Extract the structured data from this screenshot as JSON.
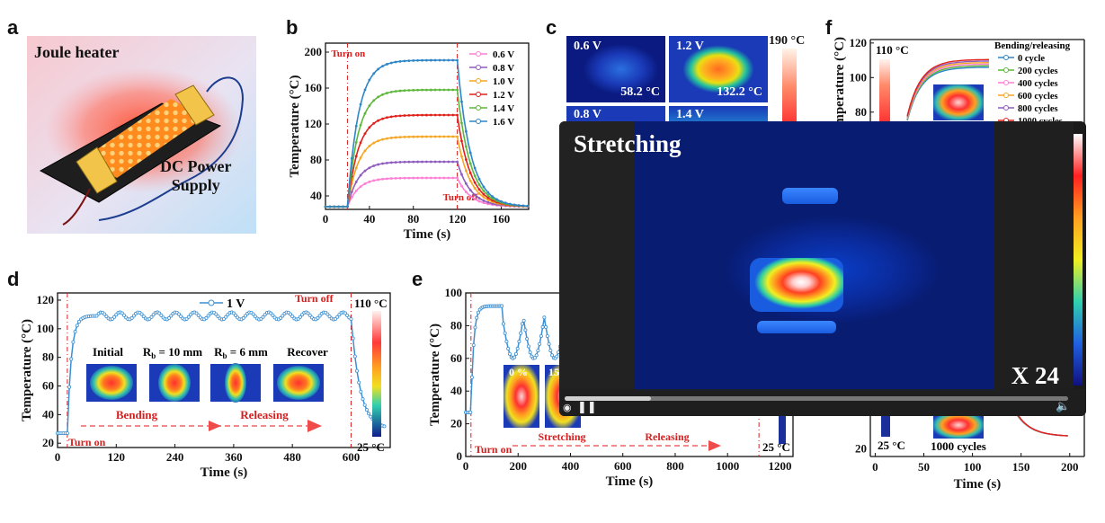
{
  "panels": {
    "a": {
      "letter": "a",
      "title": "Joule heater",
      "label": "DC Power\nSupply",
      "label_line1": "DC Power",
      "label_line2": "Supply"
    },
    "b": {
      "letter": "b"
    },
    "c": {
      "letter": "c",
      "scale_max": "190 °C",
      "tiles": [
        {
          "voltage": "0.6 V",
          "temp": "58.2 °C"
        },
        {
          "voltage": "1.2 V",
          "temp": "132.2 °C"
        },
        {
          "voltage": "0.8 V",
          "temp": ""
        },
        {
          "voltage": "1.4 V",
          "temp": ""
        }
      ]
    },
    "d": {
      "letter": "d",
      "legend": "1 V",
      "turn_on": "Turn on",
      "turn_off": "Turn off",
      "scale_max": "110 °C",
      "scale_min": "25 °C",
      "states": [
        "Initial",
        "R",
        "b",
        " = 10 mm",
        "R",
        "b",
        " = 6 mm",
        "Recover"
      ],
      "state_initial": "Initial",
      "state_rb10_main": "R",
      "state_rb10_sub": "b",
      "state_rb10_rest": " = 10 mm",
      "state_rb6_main": "R",
      "state_rb6_sub": "b",
      "state_rb6_rest": " = 6 mm",
      "state_recover": "Recover",
      "bending": "Bending",
      "releasing": "Releasing"
    },
    "e": {
      "letter": "e",
      "turn_on": "Turn on",
      "stretching": "Stretching",
      "releasing": "Releasing",
      "scale_min": "25 °C",
      "inset1": "0 %",
      "inset2": "15"
    },
    "f": {
      "letter": "f",
      "legend_title": "Bending/releasing",
      "scale_max": "110 °C",
      "scale_min": "25 °C",
      "bottom_label": "1000 cycles"
    }
  },
  "video_overlay": {
    "title": "Stretching",
    "speed": "X 24"
  },
  "chart_data": [
    {
      "panel": "b",
      "type": "line",
      "xlabel": "Time (s)",
      "ylabel": "Temperature (°C)",
      "xlim": [
        0,
        185
      ],
      "ylim": [
        25,
        210
      ],
      "xticks": [
        0,
        40,
        80,
        120,
        160
      ],
      "yticks": [
        40,
        80,
        120,
        160,
        200
      ],
      "annotations": [
        "Turn on",
        "Turn off"
      ],
      "annotation_x": [
        20,
        120
      ],
      "legend_placement": "top-right",
      "series": [
        {
          "name": "0.6 V",
          "color": "#ff7fd4",
          "plateau": 60
        },
        {
          "name": "0.8 V",
          "color": "#8e5bbf",
          "plateau": 78
        },
        {
          "name": "1.0 V",
          "color": "#f5a623",
          "plateau": 106
        },
        {
          "name": "1.2 V",
          "color": "#e0201b",
          "plateau": 130
        },
        {
          "name": "1.4 V",
          "color": "#5cb83a",
          "plateau": 158
        },
        {
          "name": "1.6 V",
          "color": "#2f86c6",
          "plateau": 191
        }
      ],
      "baseline": 28,
      "t_on": 20,
      "t_off": 120
    },
    {
      "panel": "d",
      "type": "line",
      "xlabel": "Time (s)",
      "ylabel": "Temperature (°C)",
      "xlim": [
        0,
        680
      ],
      "ylim": [
        17,
        125
      ],
      "xticks": [
        0,
        120,
        240,
        360,
        480,
        600
      ],
      "yticks": [
        20,
        40,
        60,
        80,
        100,
        120
      ],
      "series": [
        {
          "name": "1 V",
          "color": "#3d8fd1"
        }
      ],
      "baseline": 27,
      "plateau": 109,
      "t_on": 20,
      "t_off": 600,
      "end_value": 30
    },
    {
      "panel": "e",
      "type": "line",
      "xlabel": "Time (s)",
      "ylabel": "Temperature (°C)",
      "xlim": [
        0,
        1250
      ],
      "ylim": [
        0,
        100
      ],
      "xticks": [
        0,
        200,
        400,
        600,
        800,
        1000,
        1200
      ],
      "yticks": [
        0,
        20,
        40,
        60,
        80,
        100
      ],
      "series": [
        {
          "name": "",
          "color": "#3d8fd1"
        }
      ],
      "baseline": 27,
      "plateau": 92,
      "t_on": 20
    },
    {
      "panel": "f",
      "type": "line",
      "xlabel": "Time (s)",
      "ylabel": "Temperature (°C)",
      "xlim": [
        -5,
        215
      ],
      "ylim": [
        15,
        122
      ],
      "xticks": [
        0,
        50,
        100,
        150,
        200
      ],
      "yticks": [
        20,
        80,
        100,
        120
      ],
      "series": [
        {
          "name": "0 cycle",
          "color": "#2f86c6"
        },
        {
          "name": "200 cycles",
          "color": "#5cb83a"
        },
        {
          "name": "400 cycles",
          "color": "#ff7fd4"
        },
        {
          "name": "600 cycles",
          "color": "#f5a623"
        },
        {
          "name": "800 cycles",
          "color": "#8e5bbf"
        },
        {
          "name": "1000 cycles",
          "color": "#e0201b"
        }
      ]
    }
  ]
}
